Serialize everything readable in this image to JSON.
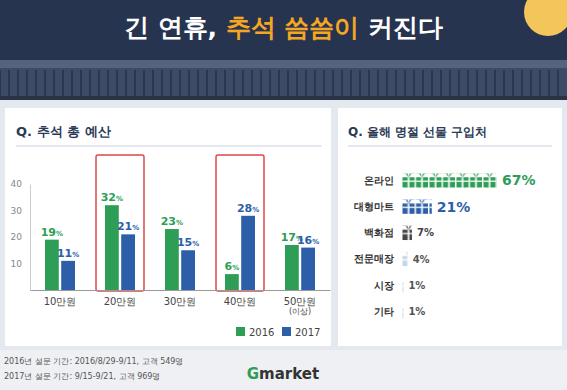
{
  "header": {
    "title_parts": [
      "긴 연휴, ",
      "추석 씀씀이",
      " 커진다"
    ]
  },
  "chart_data": [
    {
      "type": "bar",
      "title": "Q. 추석 총 예산",
      "categories": [
        "10만원",
        "20만원",
        "30만원",
        "40만원",
        "50만원\n(이상)"
      ],
      "series": [
        {
          "name": "2016",
          "color": "#2e9e57",
          "values": [
            19,
            32,
            23,
            6,
            17
          ],
          "value_labels": [
            "19%",
            "32%",
            "23%",
            "6%",
            "17%"
          ]
        },
        {
          "name": "2017",
          "color": "#2c5fa8",
          "values": [
            11,
            21,
            15,
            28,
            16
          ],
          "value_labels": [
            "11%",
            "21%",
            "15%",
            "28%",
            "16%"
          ]
        }
      ],
      "ylim": [
        0,
        40
      ],
      "yticks": [
        10,
        20,
        30,
        40
      ],
      "grid": false,
      "legend": "bottom",
      "data_labels": true
    },
    {
      "type": "bar",
      "orientation": "horizontal",
      "title": "Q. 올해 명절 선물 구입처",
      "categories": [
        "온라인",
        "대형마트",
        "백화점",
        "전문매장",
        "시장",
        "기타"
      ],
      "values": [
        67,
        21,
        7,
        4,
        1,
        1
      ],
      "value_labels": [
        "67%",
        "21%",
        "7%",
        "4%",
        "1%",
        "1%"
      ],
      "colors": [
        "#2e9e57",
        "#2c5fa8",
        "#444444",
        "#c6d8e8",
        "#c6d8e8",
        "#c6d8e8"
      ],
      "data_labels": true,
      "tick_labels": "y"
    }
  ],
  "footer": {
    "notes": [
      "2016년 설문 기간: 2016/8/29-9/11, 고객 549명",
      "2017년 설문 기간: 9/15-9/21, 고객 969명"
    ],
    "logo": "Gmarket"
  }
}
